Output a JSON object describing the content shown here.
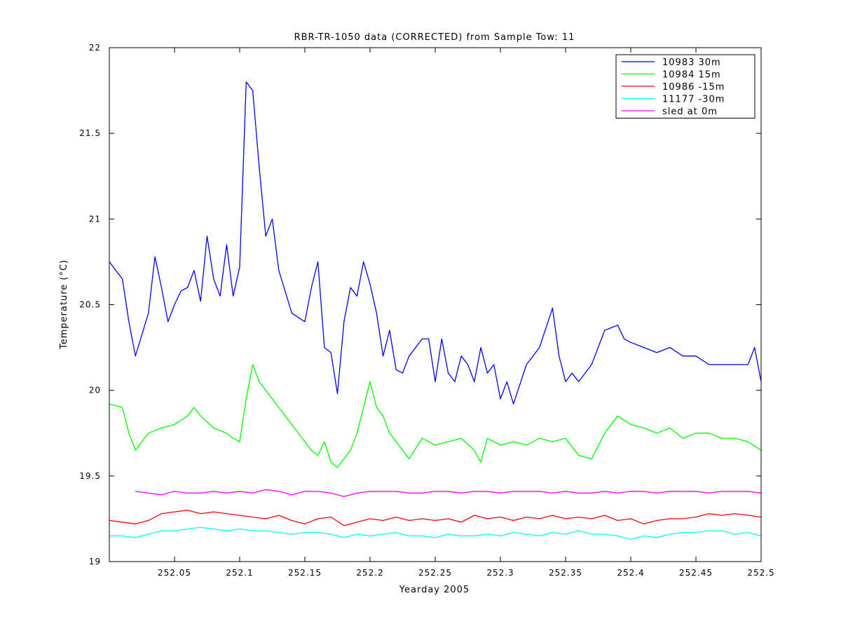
{
  "chart_data": {
    "type": "line",
    "title": "RBR-TR-1050 data (CORRECTED) from Sample Tow: 11",
    "xlabel": "Yearday 2005",
    "ylabel": "Temperature (°C)",
    "xlim": [
      252.0,
      252.5
    ],
    "ylim": [
      19,
      22
    ],
    "xticks": [
      252.05,
      252.1,
      252.15,
      252.2,
      252.25,
      252.3,
      252.35,
      252.4,
      252.45,
      252.5
    ],
    "xtick_labels": [
      "252.05",
      "252.1",
      "252.15",
      "252.2",
      "252.25",
      "252.3",
      "252.35",
      "252.4",
      "252.45",
      "252.5"
    ],
    "yticks": [
      19,
      19.5,
      20,
      20.5,
      21,
      21.5,
      22
    ],
    "ytick_labels": [
      "19",
      "19.5",
      "20",
      "20.5",
      "21",
      "21.5",
      "22"
    ],
    "grid": false,
    "legend_position": "top-right",
    "series": [
      {
        "name": "10983 30m",
        "color": "#0000ff",
        "x": [
          252.0,
          252.01,
          252.015,
          252.02,
          252.03,
          252.035,
          252.04,
          252.045,
          252.05,
          252.055,
          252.06,
          252.065,
          252.07,
          252.075,
          252.08,
          252.085,
          252.09,
          252.095,
          252.1,
          252.105,
          252.11,
          252.115,
          252.12,
          252.125,
          252.13,
          252.14,
          252.15,
          252.155,
          252.16,
          252.165,
          252.17,
          252.175,
          252.18,
          252.185,
          252.19,
          252.195,
          252.2,
          252.205,
          252.21,
          252.215,
          252.22,
          252.225,
          252.23,
          252.24,
          252.245,
          252.25,
          252.255,
          252.26,
          252.265,
          252.27,
          252.275,
          252.28,
          252.285,
          252.29,
          252.295,
          252.3,
          252.305,
          252.31,
          252.32,
          252.33,
          252.34,
          252.345,
          252.35,
          252.355,
          252.36,
          252.37,
          252.38,
          252.39,
          252.395,
          252.4,
          252.41,
          252.42,
          252.43,
          252.44,
          252.45,
          252.46,
          252.47,
          252.48,
          252.49,
          252.495,
          252.5
        ],
        "values": [
          20.75,
          20.65,
          20.4,
          20.2,
          20.45,
          20.78,
          20.6,
          20.4,
          20.5,
          20.58,
          20.6,
          20.7,
          20.52,
          20.9,
          20.65,
          20.55,
          20.85,
          20.55,
          20.72,
          21.8,
          21.75,
          21.3,
          20.9,
          21.0,
          20.7,
          20.45,
          20.4,
          20.6,
          20.75,
          20.25,
          20.22,
          19.98,
          20.4,
          20.6,
          20.55,
          20.75,
          20.62,
          20.45,
          20.2,
          20.35,
          20.12,
          20.1,
          20.2,
          20.3,
          20.3,
          20.05,
          20.3,
          20.1,
          20.05,
          20.2,
          20.15,
          20.05,
          20.25,
          20.1,
          20.15,
          19.95,
          20.05,
          19.92,
          20.15,
          20.25,
          20.48,
          20.2,
          20.05,
          20.1,
          20.05,
          20.15,
          20.35,
          20.38,
          20.3,
          20.28,
          20.25,
          20.22,
          20.25,
          20.2,
          20.2,
          20.15,
          20.15,
          20.15,
          20.15,
          20.25,
          20.05
        ]
      },
      {
        "name": "10984 15m",
        "color": "#00ff00",
        "x": [
          252.0,
          252.01,
          252.015,
          252.02,
          252.025,
          252.03,
          252.04,
          252.05,
          252.06,
          252.065,
          252.07,
          252.08,
          252.09,
          252.095,
          252.1,
          252.105,
          252.11,
          252.115,
          252.12,
          252.125,
          252.13,
          252.14,
          252.15,
          252.155,
          252.16,
          252.165,
          252.17,
          252.175,
          252.18,
          252.185,
          252.19,
          252.195,
          252.2,
          252.205,
          252.21,
          252.215,
          252.22,
          252.225,
          252.23,
          252.24,
          252.25,
          252.26,
          252.27,
          252.28,
          252.285,
          252.29,
          252.3,
          252.31,
          252.32,
          252.33,
          252.34,
          252.35,
          252.36,
          252.37,
          252.38,
          252.39,
          252.4,
          252.41,
          252.42,
          252.43,
          252.44,
          252.45,
          252.46,
          252.47,
          252.48,
          252.49,
          252.5
        ],
        "values": [
          19.92,
          19.9,
          19.75,
          19.65,
          19.7,
          19.75,
          19.78,
          19.8,
          19.85,
          19.9,
          19.85,
          19.78,
          19.75,
          19.72,
          19.7,
          19.95,
          20.15,
          20.05,
          20.0,
          19.95,
          19.9,
          19.8,
          19.7,
          19.65,
          19.62,
          19.7,
          19.58,
          19.55,
          19.6,
          19.65,
          19.75,
          19.9,
          20.05,
          19.9,
          19.85,
          19.75,
          19.7,
          19.65,
          19.6,
          19.72,
          19.68,
          19.7,
          19.72,
          19.65,
          19.58,
          19.72,
          19.68,
          19.7,
          19.68,
          19.72,
          19.7,
          19.72,
          19.62,
          19.6,
          19.75,
          19.85,
          19.8,
          19.78,
          19.75,
          19.78,
          19.72,
          19.75,
          19.75,
          19.72,
          19.72,
          19.7,
          19.65
        ]
      },
      {
        "name": "10986 -15m",
        "color": "#ff0000",
        "x": [
          252.0,
          252.01,
          252.02,
          252.03,
          252.04,
          252.05,
          252.06,
          252.07,
          252.08,
          252.09,
          252.1,
          252.11,
          252.12,
          252.13,
          252.14,
          252.15,
          252.16,
          252.17,
          252.18,
          252.19,
          252.2,
          252.21,
          252.22,
          252.23,
          252.24,
          252.25,
          252.26,
          252.27,
          252.28,
          252.29,
          252.3,
          252.31,
          252.32,
          252.33,
          252.34,
          252.35,
          252.36,
          252.37,
          252.38,
          252.39,
          252.4,
          252.41,
          252.42,
          252.43,
          252.44,
          252.45,
          252.46,
          252.47,
          252.48,
          252.49,
          252.5
        ],
        "values": [
          19.24,
          19.23,
          19.22,
          19.24,
          19.28,
          19.29,
          19.3,
          19.28,
          19.29,
          19.28,
          19.27,
          19.26,
          19.25,
          19.27,
          19.24,
          19.22,
          19.25,
          19.26,
          19.21,
          19.23,
          19.25,
          19.24,
          19.26,
          19.24,
          19.25,
          19.24,
          19.25,
          19.23,
          19.27,
          19.25,
          19.26,
          19.24,
          19.26,
          19.25,
          19.27,
          19.25,
          19.26,
          19.25,
          19.27,
          19.24,
          19.25,
          19.22,
          19.24,
          19.25,
          19.25,
          19.26,
          19.28,
          19.27,
          19.28,
          19.27,
          19.26
        ]
      },
      {
        "name": "11177 -30m",
        "color": "#00ffff",
        "x": [
          252.0,
          252.01,
          252.02,
          252.03,
          252.04,
          252.05,
          252.06,
          252.07,
          252.08,
          252.09,
          252.1,
          252.11,
          252.12,
          252.13,
          252.14,
          252.15,
          252.16,
          252.17,
          252.18,
          252.19,
          252.2,
          252.21,
          252.22,
          252.23,
          252.24,
          252.25,
          252.26,
          252.27,
          252.28,
          252.29,
          252.3,
          252.31,
          252.32,
          252.33,
          252.34,
          252.35,
          252.36,
          252.37,
          252.38,
          252.39,
          252.4,
          252.41,
          252.42,
          252.43,
          252.44,
          252.45,
          252.46,
          252.47,
          252.48,
          252.49,
          252.5
        ],
        "values": [
          19.15,
          19.15,
          19.14,
          19.16,
          19.18,
          19.18,
          19.19,
          19.2,
          19.19,
          19.18,
          19.19,
          19.18,
          19.18,
          19.17,
          19.16,
          19.17,
          19.17,
          19.16,
          19.14,
          19.16,
          19.15,
          19.16,
          19.17,
          19.15,
          19.15,
          19.14,
          19.16,
          19.15,
          19.15,
          19.16,
          19.15,
          19.17,
          19.16,
          19.15,
          19.17,
          19.16,
          19.18,
          19.16,
          19.16,
          19.15,
          19.13,
          19.15,
          19.14,
          19.16,
          19.17,
          19.17,
          19.18,
          19.18,
          19.16,
          19.17,
          19.15
        ]
      },
      {
        "name": "sled at 0m",
        "color": "#ff00ff",
        "x": [
          252.02,
          252.03,
          252.04,
          252.05,
          252.06,
          252.07,
          252.08,
          252.09,
          252.1,
          252.11,
          252.12,
          252.13,
          252.14,
          252.15,
          252.16,
          252.17,
          252.18,
          252.19,
          252.2,
          252.21,
          252.22,
          252.23,
          252.24,
          252.25,
          252.26,
          252.27,
          252.28,
          252.29,
          252.3,
          252.31,
          252.32,
          252.33,
          252.34,
          252.35,
          252.36,
          252.37,
          252.38,
          252.39,
          252.4,
          252.41,
          252.42,
          252.43,
          252.44,
          252.45,
          252.46,
          252.47,
          252.48,
          252.49,
          252.5
        ],
        "values": [
          19.41,
          19.4,
          19.39,
          19.41,
          19.4,
          19.4,
          19.41,
          19.4,
          19.41,
          19.4,
          19.42,
          19.41,
          19.39,
          19.41,
          19.41,
          19.4,
          19.38,
          19.4,
          19.41,
          19.41,
          19.41,
          19.4,
          19.4,
          19.41,
          19.41,
          19.4,
          19.41,
          19.41,
          19.4,
          19.41,
          19.41,
          19.41,
          19.4,
          19.41,
          19.4,
          19.4,
          19.41,
          19.4,
          19.41,
          19.41,
          19.4,
          19.41,
          19.41,
          19.41,
          19.4,
          19.41,
          19.41,
          19.41,
          19.4
        ]
      }
    ]
  }
}
